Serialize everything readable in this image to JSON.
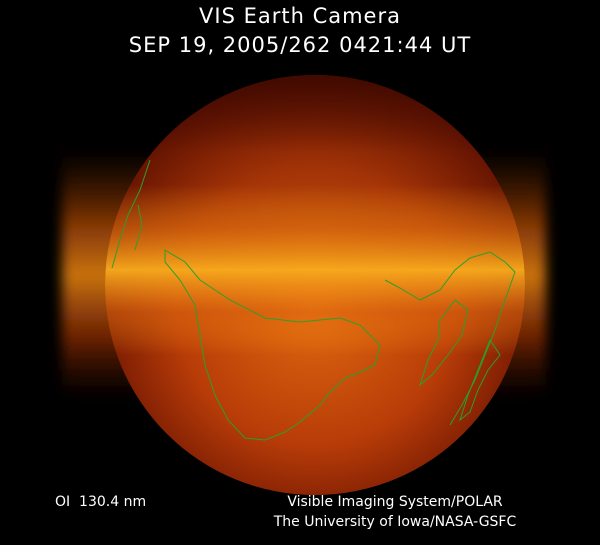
{
  "header": {
    "title": "VIS Earth Camera",
    "timestamp": "SEP 19, 2005/262 0421:44 UT"
  },
  "footer": {
    "filter": "OI  130.4 nm",
    "credit_line1": "Visible Imaging System/POLAR",
    "credit_line2": "The University of Iowa/NASA-GSFC"
  }
}
